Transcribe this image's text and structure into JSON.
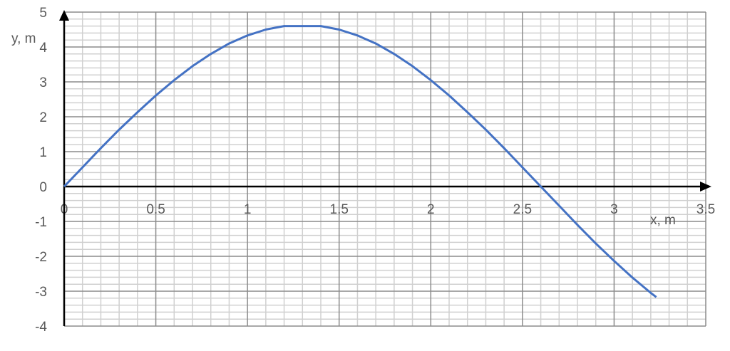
{
  "chart_data": {
    "type": "line",
    "title": "",
    "xlabel": "x, m",
    "ylabel": "y, m",
    "xlim": [
      0,
      3.5
    ],
    "ylim": [
      -4,
      5
    ],
    "x_ticks": [
      "0",
      "0.5",
      "1",
      "1.5",
      "2",
      "2.5",
      "3",
      "3.5"
    ],
    "y_ticks": [
      "5",
      "4",
      "3",
      "2",
      "1",
      "0",
      "-1",
      "-2",
      "-3",
      "-4"
    ],
    "grid": true,
    "minor_grid": true,
    "series_color": "#4472C4",
    "series": [
      {
        "x": [
          0,
          0.1,
          0.2,
          0.3,
          0.4,
          0.5,
          0.6,
          0.7,
          0.8,
          0.9,
          1.0,
          1.1,
          1.2,
          1.3,
          1.4,
          1.5,
          1.6,
          1.7,
          1.8,
          1.9,
          2.0,
          2.1,
          2.2,
          2.3,
          2.4,
          2.5,
          2.6,
          2.7,
          2.8,
          2.9,
          3.0,
          3.1,
          3.2,
          3.23
        ],
        "y": [
          0,
          0.55,
          1.1,
          1.63,
          2.13,
          2.61,
          3.05,
          3.45,
          3.8,
          4.1,
          4.33,
          4.5,
          4.6,
          4.6,
          4.6,
          4.5,
          4.33,
          4.1,
          3.8,
          3.45,
          3.05,
          2.61,
          2.13,
          1.63,
          1.1,
          0.55,
          0,
          -0.55,
          -1.1,
          -1.63,
          -2.13,
          -2.61,
          -3.05,
          -3.17
        ]
      }
    ]
  }
}
